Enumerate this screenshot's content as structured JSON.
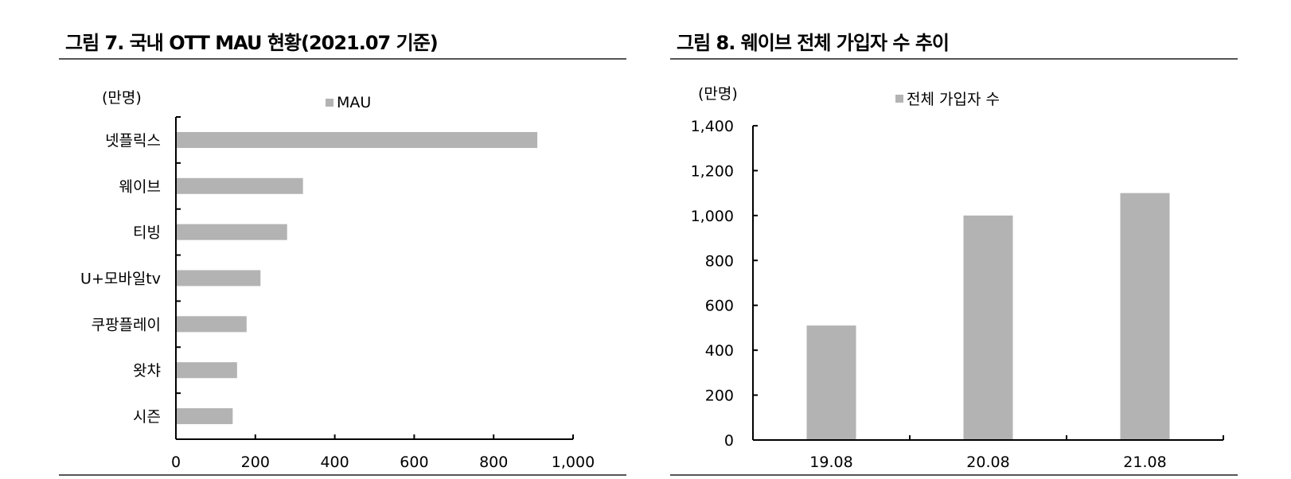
{
  "chart_data": [
    {
      "type": "bar",
      "orientation": "horizontal",
      "title": "그림 7. 국내 OTT MAU 현황(2021.07 기준)",
      "unit_label": "(만명)",
      "categories": [
        "넷플릭스",
        "웨이브",
        "티빙",
        "U+모바일tv",
        "쿠팡플레이",
        "왓챠",
        "시즌"
      ],
      "series": [
        {
          "name": "MAU",
          "values": [
            910,
            320,
            280,
            213,
            178,
            154,
            143
          ]
        }
      ],
      "x_ticks": [
        "0",
        "200",
        "400",
        "600",
        "800",
        "1,000"
      ],
      "xlim": [
        0,
        1000
      ],
      "legend": "top",
      "grid": false,
      "bar_color": "#b3b3b3"
    },
    {
      "type": "bar",
      "orientation": "vertical",
      "title": "그림 8. 웨이브 전체 가입자 수 추이",
      "unit_label": "(만명)",
      "categories": [
        "19.08",
        "20.08",
        "21.08"
      ],
      "series": [
        {
          "name": "전체 가입자 수",
          "values": [
            510,
            1000,
            1100
          ]
        }
      ],
      "y_ticks": [
        "0",
        "200",
        "400",
        "600",
        "800",
        "1,000",
        "1,200",
        "1,400"
      ],
      "ylim": [
        0,
        1400
      ],
      "legend": "top",
      "grid": false,
      "bar_color": "#b3b3b3"
    }
  ]
}
